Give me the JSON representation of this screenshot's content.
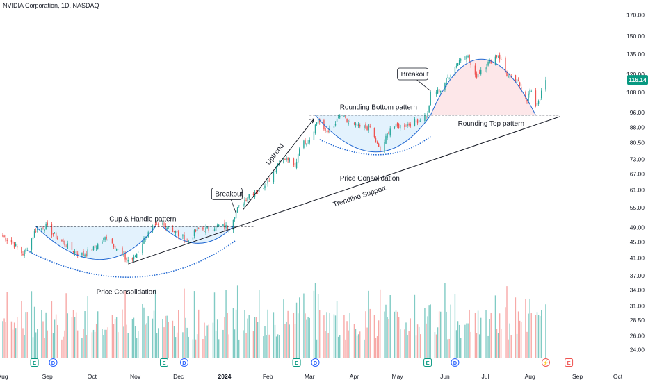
{
  "header": {
    "title": "NVIDIA Corporation, 1D, NASDAQ"
  },
  "last_price": {
    "value": 116.14,
    "label": "116.14"
  },
  "colors": {
    "up": "#26a69a",
    "down": "#ef5350",
    "vol_up": "#80cbc4",
    "vol_down": "#f7a9a7",
    "fill_blue": "#e3f2fd",
    "fill_red": "#fde7e9",
    "pattern_line": "#1e66d1",
    "badge": "#089981"
  },
  "annotations": {
    "cup_handle": "Cup & Handle pattern",
    "price_consolidation_1": "Price Consolidation",
    "breakout_1": "Breakout",
    "uptrend": "Uptrend",
    "trendline": "Trendline Support",
    "rounding_bottom": "Rounding Bottom pattern",
    "price_consolidation_2": "Price Consolidation",
    "breakout_2": "Breakout",
    "rounding_top": "Rounding Top pattern"
  },
  "event_markers": [
    {
      "type": "E",
      "date": "2023-08-23"
    },
    {
      "type": "D",
      "date": "2023-09-05"
    },
    {
      "type": "E",
      "date": "2023-11-21"
    },
    {
      "type": "D",
      "date": "2023-12-05"
    },
    {
      "type": "E",
      "date": "2024-02-21"
    },
    {
      "type": "D",
      "date": "2024-03-05"
    },
    {
      "type": "E",
      "date": "2024-05-22"
    },
    {
      "type": "D",
      "date": "2024-06-10"
    },
    {
      "type": "⚡",
      "date": "2024-08-12"
    },
    {
      "type": "E",
      "date": "2024-08-28"
    }
  ],
  "chart_data": {
    "type": "candlestick",
    "title": "NVIDIA Corporation, 1D, NASDAQ",
    "x_axis": {
      "labels": [
        "Aug",
        "Sep",
        "Oct",
        "Nov",
        "Dec",
        "2024",
        "Feb",
        "Mar",
        "Apr",
        "May",
        "Jun",
        "Jul",
        "Aug",
        "Sep",
        "Oct"
      ],
      "label_dates": [
        "2023-08-01",
        "2023-09-01",
        "2023-10-02",
        "2023-11-01",
        "2023-12-01",
        "2024-01-02",
        "2024-02-01",
        "2024-03-01",
        "2024-04-01",
        "2024-05-01",
        "2024-06-03",
        "2024-07-01",
        "2024-08-01",
        "2024-09-03",
        "2024-10-01"
      ],
      "range": [
        "2023-08-01",
        "2024-10-08"
      ]
    },
    "y_axis": {
      "scale": "log",
      "ticks": [
        170.0,
        150.0,
        135.0,
        120.0,
        108.0,
        96.0,
        88.0,
        80.5,
        73.0,
        67.0,
        61.0,
        55.0,
        49.0,
        45.0,
        41.0,
        37.0,
        34.0,
        31.0,
        28.5,
        26.0,
        24.0
      ],
      "tick_labels": [
        "170.00",
        "150.00",
        "135.00",
        "120.00",
        "108.00",
        "96.00",
        "88.00",
        "80.50",
        "73.00",
        "67.00",
        "61.00",
        "55.00",
        "49.00",
        "45.00",
        "41.00",
        "37.00",
        "34.00",
        "31.00",
        "28.50",
        "26.00",
        "24.00"
      ],
      "range": [
        22.8,
        178
      ]
    },
    "volume_pane": {
      "shown": true
    },
    "price_keypoints": [
      [
        "2023-08-01",
        46.5
      ],
      [
        "2023-08-07",
        45.0
      ],
      [
        "2023-08-15",
        42.0
      ],
      [
        "2023-08-18",
        43.5
      ],
      [
        "2023-08-24",
        48.5
      ],
      [
        "2023-08-31",
        49.3
      ],
      [
        "2023-09-08",
        46.0
      ],
      [
        "2023-09-20",
        42.5
      ],
      [
        "2023-09-26",
        41.8
      ],
      [
        "2023-10-05",
        43.8
      ],
      [
        "2023-10-12",
        46.5
      ],
      [
        "2023-10-20",
        43.0
      ],
      [
        "2023-10-26",
        40.5
      ],
      [
        "2023-10-31",
        40.8
      ],
      [
        "2023-11-08",
        46.5
      ],
      [
        "2023-11-14",
        48.8
      ],
      [
        "2023-11-20",
        50.0
      ],
      [
        "2023-11-28",
        48.0
      ],
      [
        "2023-12-07",
        45.0
      ],
      [
        "2023-12-14",
        48.5
      ],
      [
        "2023-12-22",
        48.5
      ],
      [
        "2023-12-29",
        49.5
      ],
      [
        "2024-01-05",
        49.0
      ],
      [
        "2024-01-10",
        54.0
      ],
      [
        "2024-01-19",
        59.5
      ],
      [
        "2024-01-26",
        61.0
      ],
      [
        "2024-02-02",
        65.0
      ],
      [
        "2024-02-09",
        72.5
      ],
      [
        "2024-02-15",
        73.0
      ],
      [
        "2024-02-20",
        69.5
      ],
      [
        "2024-02-23",
        79.0
      ],
      [
        "2024-03-01",
        82.3
      ],
      [
        "2024-03-07",
        92.6
      ],
      [
        "2024-03-11",
        85.8
      ],
      [
        "2024-03-18",
        88.4
      ],
      [
        "2024-03-22",
        94.4
      ],
      [
        "2024-03-28",
        90.4
      ],
      [
        "2024-04-05",
        88.0
      ],
      [
        "2024-04-12",
        88.1
      ],
      [
        "2024-04-19",
        76.2
      ],
      [
        "2024-04-26",
        87.7
      ],
      [
        "2024-05-03",
        88.7
      ],
      [
        "2024-05-10",
        89.9
      ],
      [
        "2024-05-17",
        92.5
      ],
      [
        "2024-05-22",
        94.9
      ],
      [
        "2024-05-24",
        106.5
      ],
      [
        "2024-05-31",
        109.6
      ],
      [
        "2024-06-07",
        120.9
      ],
      [
        "2024-06-14",
        131.9
      ],
      [
        "2024-06-18",
        135.6
      ],
      [
        "2024-06-24",
        118.1
      ],
      [
        "2024-06-28",
        123.5
      ],
      [
        "2024-07-10",
        134.9
      ],
      [
        "2024-07-17",
        117.9
      ],
      [
        "2024-07-24",
        114.3
      ],
      [
        "2024-07-30",
        103.7
      ],
      [
        "2024-08-01",
        109.2
      ],
      [
        "2024-08-05",
        100.5
      ],
      [
        "2024-08-08",
        104.8
      ],
      [
        "2024-08-12",
        116.14
      ]
    ]
  }
}
